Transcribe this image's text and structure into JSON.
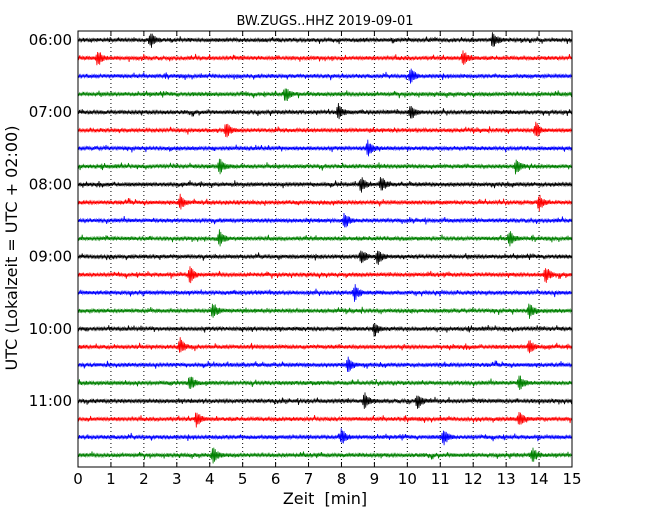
{
  "chart_data": {
    "type": "line",
    "title": "BW.ZUGS..HHZ 2019-09-01",
    "xlabel": "Zeit  [min]",
    "ylabel": "UTC (Lokalzeit = UTC + 02:00)",
    "xlim": [
      0,
      15
    ],
    "x_ticks": [
      0,
      1,
      2,
      3,
      4,
      5,
      6,
      7,
      8,
      9,
      10,
      11,
      12,
      13,
      14,
      15
    ],
    "y_tick_labels": [
      "06:00",
      "07:00",
      "08:00",
      "09:00",
      "10:00",
      "11:00"
    ],
    "grid": "vertical-dotted",
    "colors": [
      "#000000",
      "#ff0000",
      "#0000ff",
      "#008000"
    ],
    "traces": [
      {
        "start": "06:00",
        "events": [
          2.2,
          12.6
        ]
      },
      {
        "start": "06:15",
        "events": [
          0.6,
          11.7
        ]
      },
      {
        "start": "06:30",
        "events": [
          10.1
        ]
      },
      {
        "start": "06:45",
        "events": [
          6.3
        ]
      },
      {
        "start": "07:00",
        "events": [
          7.9,
          10.1
        ]
      },
      {
        "start": "07:15",
        "events": [
          4.5,
          13.9
        ]
      },
      {
        "start": "07:30",
        "events": [
          8.8
        ]
      },
      {
        "start": "07:45",
        "events": [
          4.3,
          13.3
        ]
      },
      {
        "start": "08:00",
        "events": [
          8.6,
          9.2
        ]
      },
      {
        "start": "08:15",
        "events": [
          3.1,
          14.0
        ]
      },
      {
        "start": "08:30",
        "events": [
          8.1
        ]
      },
      {
        "start": "08:45",
        "events": [
          4.3,
          13.1
        ]
      },
      {
        "start": "09:00",
        "events": [
          8.6,
          9.1
        ]
      },
      {
        "start": "09:15",
        "events": [
          3.4,
          14.2
        ]
      },
      {
        "start": "09:30",
        "events": [
          8.4
        ]
      },
      {
        "start": "09:45",
        "events": [
          4.1,
          13.7
        ]
      },
      {
        "start": "10:00",
        "events": [
          9.0
        ]
      },
      {
        "start": "10:15",
        "events": [
          3.1,
          13.7
        ]
      },
      {
        "start": "10:30",
        "events": [
          8.2
        ]
      },
      {
        "start": "10:45",
        "events": [
          3.4,
          13.4
        ]
      },
      {
        "start": "11:00",
        "events": [
          8.7,
          10.3
        ]
      },
      {
        "start": "11:15",
        "events": [
          3.6,
          13.4
        ]
      },
      {
        "start": "11:30",
        "events": [
          8.0,
          11.1
        ]
      },
      {
        "start": "11:45",
        "events": [
          4.1,
          13.8
        ]
      }
    ]
  }
}
